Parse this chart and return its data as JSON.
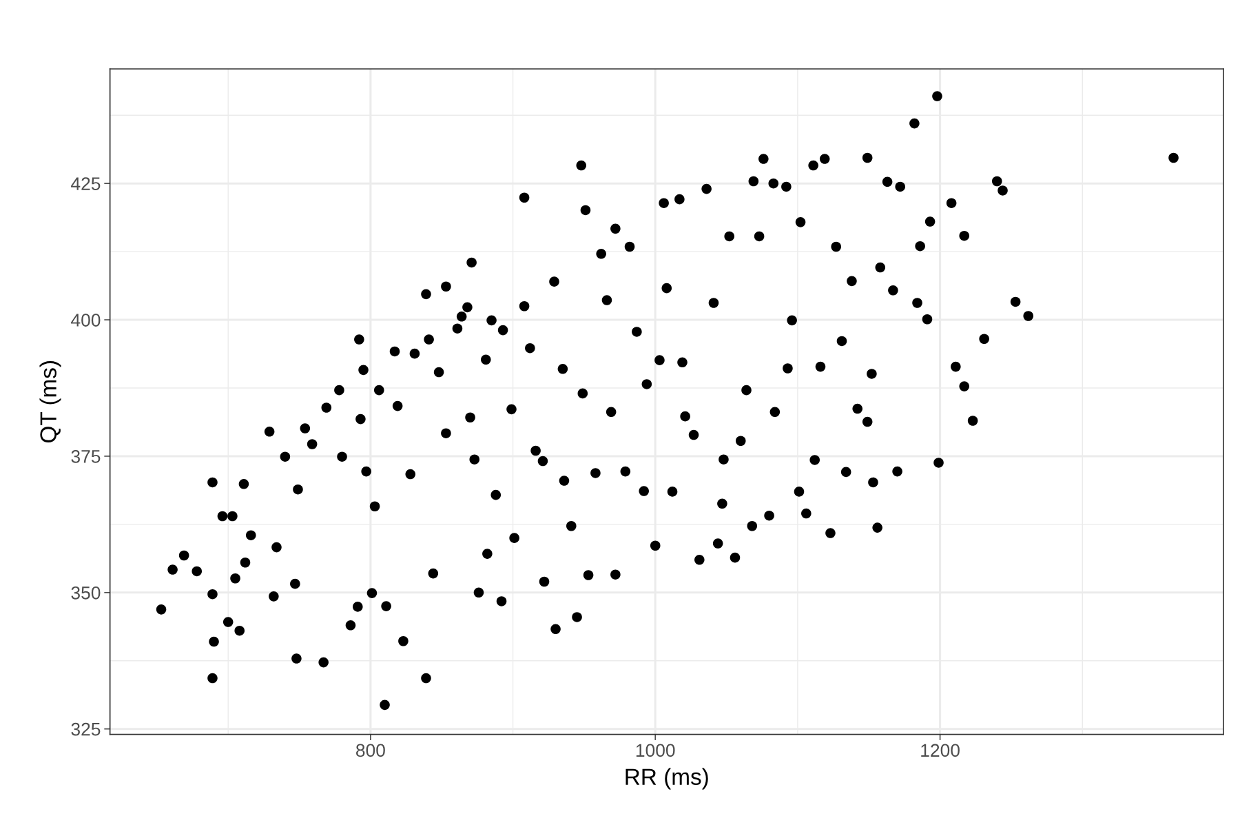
{
  "chart_data": {
    "type": "scatter",
    "xlabel": "RR (ms)",
    "ylabel": "QT (ms)",
    "xlim": [
      617,
      1399
    ],
    "xticks": [
      800,
      1000,
      1200
    ],
    "ylim": [
      324,
      446
    ],
    "yticks": [
      325,
      350,
      375,
      400,
      425
    ],
    "grid": true,
    "marker": "circle",
    "series": [
      {
        "color": "#000000",
        "x": [
          653,
          661,
          669,
          678,
          689,
          689,
          689,
          690,
          696,
          703,
          700,
          708,
          705,
          711,
          712,
          716,
          729,
          732,
          734,
          740,
          748,
          749,
          747,
          754,
          759,
          767,
          769,
          778,
          780,
          786,
          791,
          792,
          795,
          793,
          797,
          803,
          801,
          806,
          810,
          811,
          817,
          819,
          823,
          828,
          831,
          839,
          839,
          841,
          844,
          848,
          853,
          853,
          861,
          864,
          868,
          871,
          870,
          873,
          876,
          881,
          885,
          882,
          888,
          893,
          892,
          899,
          901,
          908,
          908,
          912,
          916,
          921,
          922,
          930,
          929,
          935,
          936,
          941,
          945,
          948,
          951,
          949,
          953,
          958,
          962,
          966,
          969,
          972,
          972,
          979,
          982,
          987,
          992,
          994,
          1000,
          1003,
          1006,
          1008,
          1012,
          1017,
          1019,
          1021,
          1027,
          1031,
          1036,
          1041,
          1044,
          1047,
          1048,
          1052,
          1056,
          1060,
          1064,
          1068,
          1069,
          1073,
          1076,
          1080,
          1083,
          1084,
          1093,
          1092,
          1096,
          1101,
          1102,
          1106,
          1112,
          1111,
          1116,
          1119,
          1123,
          1127,
          1131,
          1134,
          1138,
          1142,
          1149,
          1149,
          1152,
          1153,
          1156,
          1158,
          1163,
          1167,
          1170,
          1172,
          1182,
          1184,
          1186,
          1191,
          1193,
          1198,
          1199,
          1208,
          1211,
          1217,
          1217,
          1223,
          1231,
          1240,
          1244,
          1253,
          1262,
          1364
        ],
        "values": [
          346.9,
          354.2,
          356.8,
          353.9,
          370.2,
          349.7,
          334.3,
          341.0,
          364.0,
          364.0,
          344.6,
          343.0,
          352.6,
          369.9,
          355.5,
          360.5,
          379.5,
          349.3,
          358.3,
          374.9,
          337.9,
          368.9,
          351.6,
          380.1,
          377.2,
          337.2,
          383.9,
          387.1,
          374.9,
          344.0,
          347.4,
          396.4,
          390.8,
          381.8,
          372.2,
          365.8,
          349.9,
          387.1,
          329.4,
          347.5,
          394.2,
          384.2,
          341.1,
          371.7,
          393.8,
          404.7,
          334.3,
          396.4,
          353.5,
          390.4,
          406.1,
          379.2,
          398.4,
          400.6,
          402.3,
          410.5,
          382.1,
          374.4,
          350.0,
          392.7,
          399.9,
          357.1,
          367.9,
          398.1,
          348.4,
          383.6,
          360.0,
          422.4,
          402.5,
          394.8,
          376.0,
          374.1,
          352.0,
          343.3,
          407.0,
          391.0,
          370.5,
          362.2,
          345.5,
          428.3,
          420.1,
          386.5,
          353.2,
          371.9,
          412.1,
          403.6,
          383.1,
          353.3,
          416.7,
          372.2,
          413.4,
          397.8,
          368.6,
          388.2,
          358.6,
          392.6,
          421.4,
          405.8,
          368.5,
          422.1,
          392.2,
          382.3,
          378.9,
          356.0,
          424.0,
          403.1,
          359.0,
          366.3,
          374.4,
          415.3,
          356.4,
          377.8,
          387.1,
          362.2,
          425.4,
          415.3,
          429.5,
          364.1,
          425.0,
          383.1,
          391.1,
          424.4,
          399.9,
          368.5,
          417.9,
          364.5,
          374.3,
          428.3,
          391.4,
          429.5,
          360.9,
          413.4,
          396.1,
          372.1,
          407.1,
          383.7,
          429.7,
          381.3,
          390.1,
          370.2,
          361.9,
          409.6,
          425.3,
          405.4,
          372.2,
          424.4,
          436.0,
          403.1,
          413.5,
          400.1,
          418.0,
          441.0,
          373.8,
          421.4,
          391.4,
          415.4,
          387.8,
          381.5,
          396.5,
          425.4,
          423.7,
          403.3,
          400.7,
          429.7
        ]
      }
    ]
  }
}
